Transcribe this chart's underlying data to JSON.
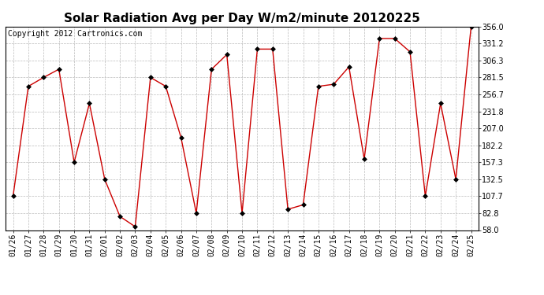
{
  "title": "Solar Radiation Avg per Day W/m2/minute 20120225",
  "copyright": "Copyright 2012 Cartronics.com",
  "dates": [
    "01/26",
    "01/27",
    "01/28",
    "01/29",
    "01/30",
    "01/31",
    "02/01",
    "02/02",
    "02/03",
    "02/04",
    "02/05",
    "02/06",
    "02/07",
    "02/08",
    "02/09",
    "02/10",
    "02/11",
    "02/12",
    "02/13",
    "02/14",
    "02/15",
    "02/16",
    "02/17",
    "02/18",
    "02/19",
    "02/20",
    "02/21",
    "02/22",
    "02/23",
    "02/24",
    "02/25"
  ],
  "values": [
    107.7,
    268.5,
    281.5,
    293.5,
    157.3,
    243.5,
    132.5,
    78.0,
    63.0,
    281.5,
    268.5,
    193.5,
    82.8,
    293.5,
    315.0,
    82.8,
    323.0,
    323.0,
    88.5,
    95.0,
    268.5,
    271.5,
    297.0,
    162.0,
    338.5,
    338.5,
    319.0,
    107.7,
    243.5,
    132.5,
    356.0
  ],
  "line_color": "#cc0000",
  "marker_color": "#000000",
  "bg_color": "#ffffff",
  "plot_bg_color": "#ffffff",
  "grid_color": "#bbbbbb",
  "ylim": [
    58.0,
    356.0
  ],
  "yticks": [
    58.0,
    82.8,
    107.7,
    132.5,
    157.3,
    182.2,
    207.0,
    231.8,
    256.7,
    281.5,
    306.3,
    331.2,
    356.0
  ],
  "title_fontsize": 11,
  "copyright_fontsize": 7,
  "tick_fontsize": 7
}
